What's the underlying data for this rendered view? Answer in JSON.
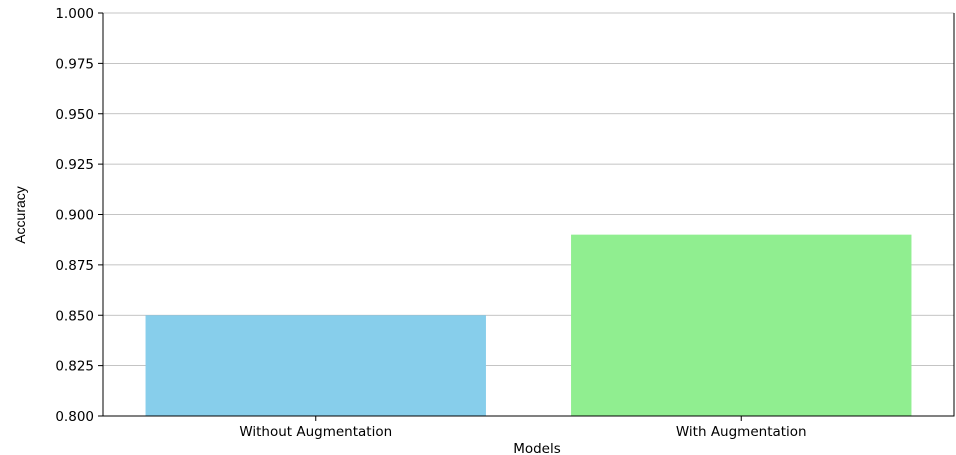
{
  "chart_data": {
    "type": "bar",
    "title": "",
    "xlabel": "Models",
    "ylabel": "Accuracy",
    "categories": [
      "Without Augmentation",
      "With Augmentation"
    ],
    "values": [
      0.85,
      0.89
    ],
    "colors": [
      "#87ceeb",
      "#90ee90"
    ],
    "ylim": [
      0.8,
      1.0
    ],
    "yticks": [
      "0.800",
      "0.825",
      "0.850",
      "0.875",
      "0.900",
      "0.925",
      "0.950",
      "0.975",
      "1.000"
    ],
    "grid": "y-axis on"
  }
}
